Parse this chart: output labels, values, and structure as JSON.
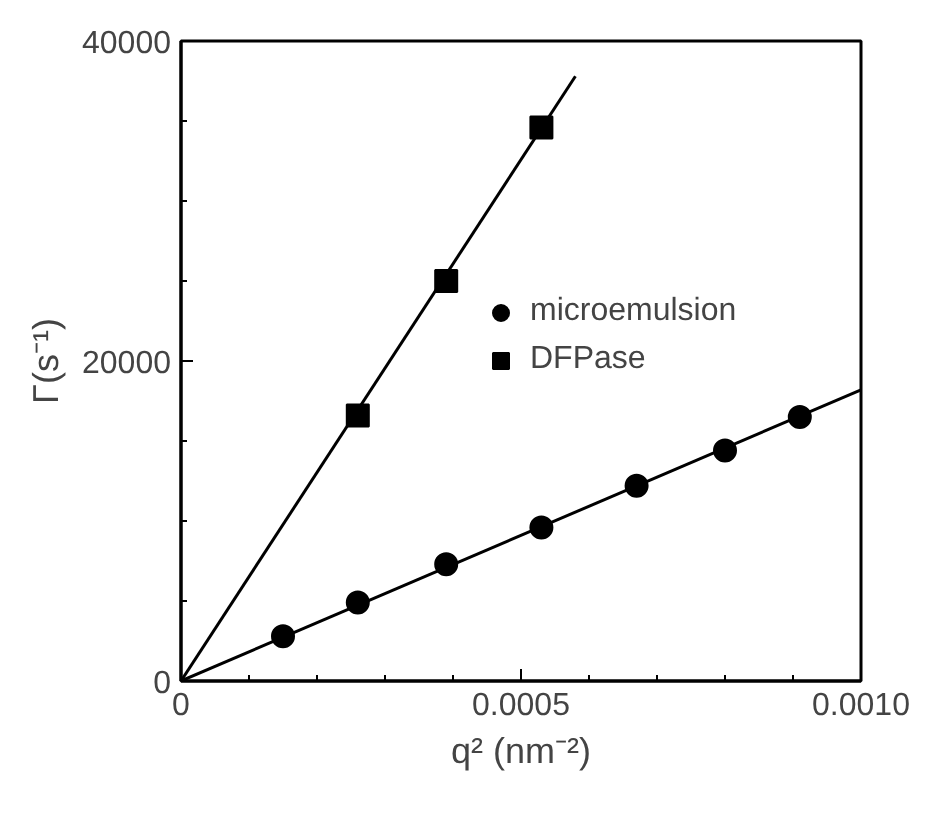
{
  "chart_data": {
    "type": "scatter",
    "xlabel": "q² (nm⁻²)",
    "ylabel": "Γ(s⁻¹)",
    "xlim": [
      0,
      0.001
    ],
    "ylim": [
      0,
      40000
    ],
    "xticks": [
      0,
      0.0005,
      {
        "value": 0.001,
        "label": "0.0010"
      }
    ],
    "yticks": [
      0,
      20000,
      40000
    ],
    "legend": "right",
    "grid": false,
    "series": [
      {
        "name": "microemulsion",
        "color": "#000000",
        "marker": "circle",
        "x": [
          0.00015,
          0.00026,
          0.00039,
          0.00053,
          0.00067,
          0.0008,
          0.00091
        ],
        "values": [
          2800,
          4900,
          7300,
          9600,
          12200,
          14400,
          16500
        ]
      },
      {
        "name": "DFPase",
        "color": "#000000",
        "marker": "square",
        "x": [
          0.00026,
          0.00039,
          0.00053
        ],
        "values": [
          16600,
          25000,
          34600
        ]
      },
      {
        "type": "line",
        "color": "#000000",
        "x": [
          0,
          0.001
        ],
        "values": [
          0,
          18200
        ]
      },
      {
        "type": "line",
        "color": "#000000",
        "x": [
          0,
          0.00058
        ],
        "values": [
          0,
          37800
        ]
      }
    ]
  }
}
